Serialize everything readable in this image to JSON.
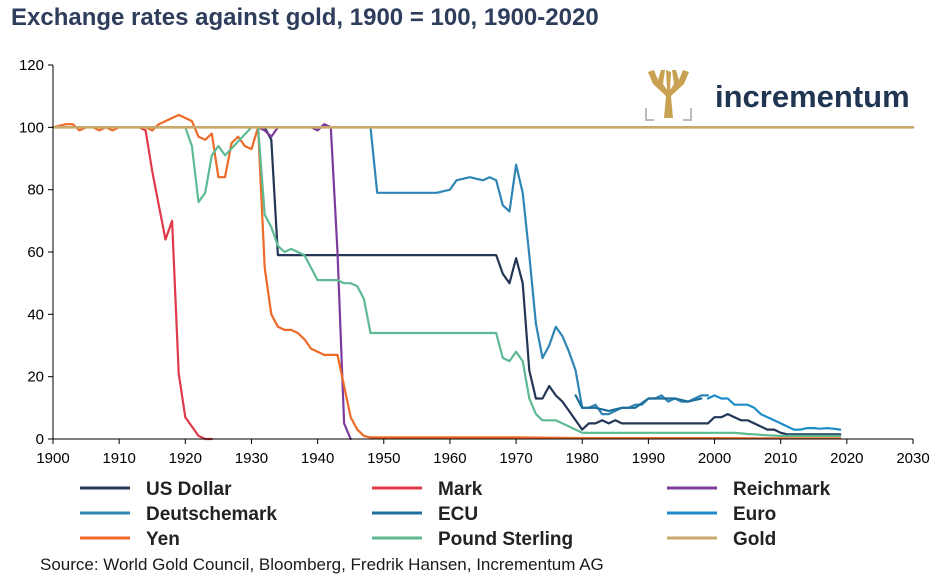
{
  "chart_data": {
    "type": "line",
    "title": "Exchange rates against gold, 1900 = 100, 1900-2020",
    "xlabel": "",
    "ylabel": "",
    "xlim": [
      1900,
      2030
    ],
    "ylim": [
      0,
      120
    ],
    "xticks": [
      1900,
      1910,
      1920,
      1930,
      1940,
      1950,
      1960,
      1970,
      1980,
      1990,
      2000,
      2010,
      2020,
      2030
    ],
    "yticks": [
      0,
      20,
      40,
      60,
      80,
      100,
      120
    ],
    "grid": false,
    "legend_position": "bottom",
    "source": "Source: World Gold Council, Bloomberg, Fredrik Hansen, Incrementum AG",
    "logo_text": "incrementum",
    "series": [
      {
        "name": "US Dollar",
        "color": "#243656",
        "x": [
          1900,
          1931,
          1932,
          1933,
          1934,
          1936,
          1940,
          1950,
          1960,
          1967,
          1968,
          1969,
          1970,
          1971,
          1972,
          1973,
          1974,
          1975,
          1976,
          1977,
          1978,
          1979,
          1980,
          1981,
          1982,
          1983,
          1984,
          1985,
          1986,
          1987,
          1988,
          1989,
          1990,
          1991,
          1992,
          1993,
          1994,
          1995,
          1996,
          1997,
          1998,
          1999,
          2000,
          2001,
          2002,
          2003,
          2004,
          2005,
          2006,
          2007,
          2008,
          2009,
          2010,
          2011,
          2012,
          2013,
          2014,
          2015,
          2016,
          2017,
          2018,
          2019
        ],
        "y": [
          100,
          100,
          100,
          96,
          59,
          59,
          59,
          59,
          59,
          59,
          53,
          50,
          58,
          50,
          22,
          13,
          13,
          17,
          14,
          12,
          9,
          6,
          3,
          5,
          5,
          6,
          5,
          6,
          5,
          5,
          5,
          5,
          5,
          5,
          5,
          5,
          5,
          5,
          5,
          5,
          5,
          5,
          7,
          7,
          8,
          7,
          6,
          6,
          5,
          4,
          3,
          3,
          2,
          1.5,
          1.5,
          1.5,
          1.5,
          1.5,
          1.5,
          1.5,
          1.5,
          1.5
        ]
      },
      {
        "name": "Mark",
        "color": "#e03a4a",
        "x": [
          1900,
          1913,
          1914,
          1915,
          1916,
          1917,
          1918,
          1919,
          1920,
          1921,
          1922,
          1923,
          1924
        ],
        "y": [
          100,
          100,
          99,
          86,
          75,
          64,
          70,
          21,
          7,
          4,
          1,
          0,
          0
        ]
      },
      {
        "name": "Reichmark",
        "color": "#7a3b9c",
        "x": [
          1924,
          1930,
          1931,
          1932,
          1933,
          1934,
          1935,
          1936,
          1937,
          1938,
          1939,
          1940,
          1941,
          1942,
          1943,
          1944,
          1945
        ],
        "y": [
          100,
          100,
          100,
          99,
          97,
          100,
          100,
          100,
          100,
          100,
          100,
          99,
          101,
          100,
          60,
          5,
          0
        ]
      },
      {
        "name": "Deutschemark",
        "color": "#2f86b5",
        "x": [
          1948,
          1949,
          1955,
          1958,
          1960,
          1961,
          1963,
          1965,
          1966,
          1967,
          1968,
          1969,
          1970,
          1971,
          1972,
          1973,
          1974,
          1975,
          1976,
          1977,
          1978,
          1979,
          1980,
          1981,
          1982,
          1983,
          1984,
          1985,
          1986,
          1987,
          1988,
          1989,
          1990,
          1991,
          1992,
          1993,
          1994,
          1995,
          1996,
          1997,
          1998,
          1999
        ],
        "y": [
          100,
          79,
          79,
          79,
          80,
          83,
          84,
          83,
          84,
          83,
          75,
          73,
          88,
          79,
          59,
          37,
          26,
          30,
          36,
          33,
          28,
          22,
          10,
          10,
          11,
          8,
          8,
          9,
          10,
          10,
          11,
          11,
          13,
          13,
          14,
          12,
          13,
          12,
          12,
          13,
          14,
          14
        ]
      },
      {
        "name": "ECU",
        "color": "#1e6e9c",
        "x": [
          1979,
          1980,
          1982,
          1984,
          1986,
          1988,
          1990,
          1992,
          1994,
          1996,
          1998
        ],
        "y": [
          14,
          10,
          10,
          9,
          10,
          10,
          13,
          13,
          13,
          12,
          13
        ]
      },
      {
        "name": "Euro",
        "color": "#1c8dc8",
        "x": [
          1999,
          2000,
          2001,
          2002,
          2003,
          2004,
          2005,
          2006,
          2007,
          2008,
          2009,
          2010,
          2011,
          2012,
          2013,
          2014,
          2015,
          2016,
          2017,
          2018,
          2019
        ],
        "y": [
          13,
          14,
          13,
          13,
          11,
          11,
          11,
          10,
          8,
          7,
          6,
          5,
          4,
          3,
          3,
          3.5,
          3.5,
          3.3,
          3.5,
          3.3,
          3
        ]
      },
      {
        "name": "Yen",
        "color": "#ed6a28",
        "x": [
          1900,
          1902,
          1903,
          1904,
          1905,
          1906,
          1907,
          1908,
          1909,
          1910,
          1911,
          1912,
          1913,
          1914,
          1915,
          1916,
          1917,
          1918,
          1919,
          1920,
          1921,
          1922,
          1923,
          1924,
          1925,
          1926,
          1927,
          1928,
          1929,
          1930,
          1931,
          1932,
          1933,
          1934,
          1935,
          1936,
          1937,
          1938,
          1939,
          1940,
          1941,
          1942,
          1943,
          1944,
          1945,
          1946,
          1947,
          1948,
          1949,
          1950,
          1960,
          1970,
          1980,
          1990,
          2000,
          2010,
          2019
        ],
        "y": [
          100,
          101,
          101,
          99,
          100,
          100,
          99,
          100,
          99,
          100,
          100,
          100,
          100,
          100,
          99,
          101,
          102,
          103,
          104,
          103,
          102,
          97,
          96,
          98,
          84,
          84,
          95,
          97,
          94,
          93,
          100,
          55,
          40,
          36,
          35,
          35,
          34,
          32,
          29,
          28,
          27,
          27,
          27,
          17,
          7,
          3,
          1,
          0.5,
          0.5,
          0.5,
          0.5,
          0.5,
          0.3,
          0.3,
          0.3,
          0.2,
          0.2
        ]
      },
      {
        "name": "Pound Sterling",
        "color": "#5dba93",
        "x": [
          1900,
          1914,
          1915,
          1916,
          1917,
          1918,
          1919,
          1920,
          1921,
          1922,
          1923,
          1924,
          1925,
          1926,
          1930,
          1931,
          1932,
          1933,
          1934,
          1935,
          1936,
          1937,
          1938,
          1939,
          1940,
          1941,
          1942,
          1943,
          1944,
          1945,
          1946,
          1947,
          1948,
          1949,
          1950,
          1960,
          1967,
          1968,
          1969,
          1970,
          1971,
          1972,
          1973,
          1974,
          1975,
          1976,
          1977,
          1978,
          1979,
          1980,
          1981,
          1982,
          1983,
          1984,
          1985,
          1986,
          1987,
          1988,
          1989,
          1990,
          1991,
          1992,
          1993,
          1994,
          1995,
          1996,
          1997,
          1998,
          1999,
          2000,
          2001,
          2002,
          2003,
          2004,
          2005,
          2006,
          2007,
          2008,
          2009,
          2010,
          2011,
          2012,
          2013,
          2014,
          2015,
          2016,
          2017,
          2018,
          2019
        ],
        "y": [
          100,
          100,
          100,
          100,
          100,
          100,
          100,
          100,
          94,
          76,
          79,
          91,
          94,
          91,
          100,
          100,
          72,
          68,
          62,
          60,
          61,
          60,
          59,
          55,
          51,
          51,
          51,
          51,
          50,
          50,
          49,
          45,
          34,
          34,
          34,
          34,
          34,
          26,
          25,
          28,
          25,
          13,
          8,
          6,
          6,
          6,
          5,
          4,
          3,
          2,
          2,
          2,
          2,
          2,
          2,
          2,
          2,
          2,
          2,
          2,
          2,
          2,
          2,
          2,
          2,
          2,
          2,
          2,
          2,
          2,
          2,
          2,
          2,
          1.8,
          1.6,
          1.5,
          1.3,
          1.2,
          1.1,
          1,
          1,
          1,
          1,
          1,
          1,
          1,
          1,
          1,
          1
        ]
      },
      {
        "name": "Gold",
        "color": "#c9a96b",
        "x": [
          1900,
          2030
        ],
        "y": [
          100,
          100
        ]
      }
    ]
  }
}
